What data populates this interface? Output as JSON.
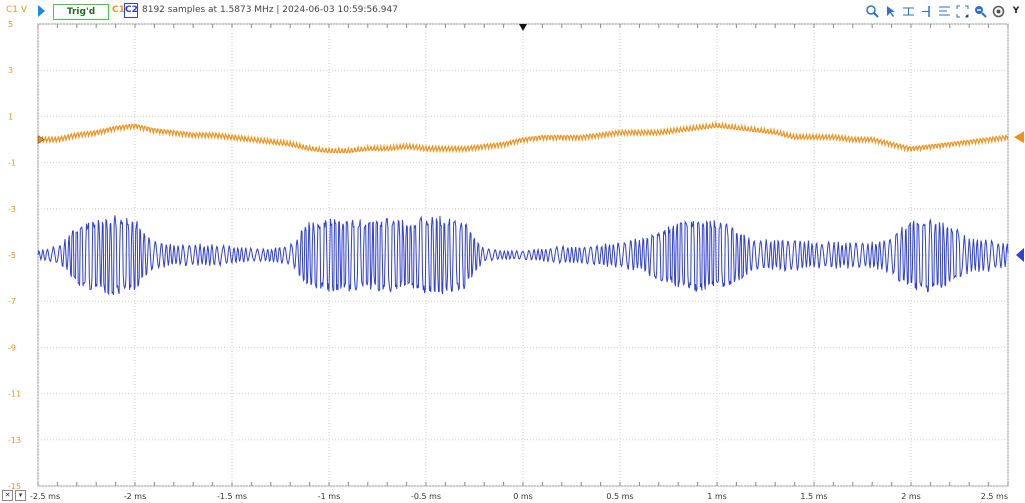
{
  "header": {
    "y_unit": "C1 V",
    "status": "Trig'd",
    "ch1_label": "C1",
    "ch2_label": "C2",
    "acq_info": "8192 samples at 1.5873 MHz  |  2024-06-03 10:59:56.947"
  },
  "toolbar": {
    "icons": [
      "zoom-icon",
      "cursor-icon",
      "hcursor-icon",
      "marker-icon",
      "align-icon",
      "zoom-fit-icon",
      "zoom-out-icon",
      "settings-icon",
      "y-axis-icon"
    ],
    "y_label": "Y"
  },
  "colors": {
    "c1": "#f0921e",
    "c2": "#2f3fd8",
    "grid": "#c8c8c8",
    "trig": "#43c843"
  },
  "chart_data": {
    "type": "line",
    "xlabel": "",
    "ylabel": "C1 V",
    "xlim": [
      -2.5,
      2.5
    ],
    "ylim": [
      -15,
      5
    ],
    "x_ticks": [
      {
        "v": -2.5,
        "label": "-2.5 ms"
      },
      {
        "v": -2.0,
        "label": "-2 ms"
      },
      {
        "v": -1.5,
        "label": "-1.5 ms"
      },
      {
        "v": -1.0,
        "label": "-1 ms"
      },
      {
        "v": -0.5,
        "label": "-0.5 ms"
      },
      {
        "v": 0,
        "label": "0 ms"
      },
      {
        "v": 0.5,
        "label": "0.5 ms"
      },
      {
        "v": 1.0,
        "label": "1 ms"
      },
      {
        "v": 1.5,
        "label": "1.5 ms"
      },
      {
        "v": 2.0,
        "label": "2 ms"
      },
      {
        "v": 2.5,
        "label": "2.5 ms"
      }
    ],
    "y_ticks": [
      5,
      3,
      1,
      -1,
      -3,
      -5,
      -7,
      -9,
      -11,
      -13,
      -15
    ],
    "grid": true,
    "series": [
      {
        "channel": "C1",
        "color": "#f0921e",
        "x": [
          -2.5,
          -2.4,
          -2.3,
          -2.2,
          -2.1,
          -2.0,
          -1.9,
          -1.8,
          -1.7,
          -1.6,
          -1.5,
          -1.4,
          -1.3,
          -1.2,
          -1.1,
          -1.0,
          -0.9,
          -0.8,
          -0.7,
          -0.6,
          -0.5,
          -0.4,
          -0.3,
          -0.2,
          -0.1,
          0.0,
          0.1,
          0.2,
          0.3,
          0.4,
          0.5,
          0.6,
          0.7,
          0.8,
          0.9,
          1.0,
          1.1,
          1.2,
          1.3,
          1.4,
          1.5,
          1.6,
          1.7,
          1.8,
          1.9,
          2.0,
          2.1,
          2.2,
          2.3,
          2.4,
          2.5
        ],
        "y": [
          0.0,
          0.0,
          0.2,
          0.3,
          0.5,
          0.6,
          0.4,
          0.3,
          0.2,
          0.2,
          0.1,
          0.0,
          -0.1,
          -0.2,
          -0.4,
          -0.5,
          -0.5,
          -0.4,
          -0.4,
          -0.3,
          -0.4,
          -0.4,
          -0.4,
          -0.3,
          -0.2,
          0.0,
          0.1,
          0.1,
          0.1,
          0.2,
          0.3,
          0.3,
          0.3,
          0.4,
          0.5,
          0.6,
          0.5,
          0.4,
          0.3,
          0.1,
          0.1,
          0.1,
          0.0,
          0.0,
          -0.2,
          -0.4,
          -0.3,
          -0.2,
          -0.1,
          0.0,
          0.1
        ],
        "ripple": 0.12
      },
      {
        "channel": "C2",
        "color": "#2f3fd8",
        "x": [
          -2.5,
          -2.4,
          -2.3,
          -2.2,
          -2.1,
          -2.0,
          -1.9,
          -1.8,
          -1.7,
          -1.6,
          -1.5,
          -1.4,
          -1.3,
          -1.2,
          -1.1,
          -1.0,
          -0.9,
          -0.8,
          -0.7,
          -0.6,
          -0.5,
          -0.4,
          -0.3,
          -0.2,
          -0.1,
          0.0,
          0.1,
          0.2,
          0.3,
          0.4,
          0.5,
          0.6,
          0.7,
          0.8,
          0.9,
          1.0,
          1.1,
          1.2,
          1.3,
          1.4,
          1.5,
          1.6,
          1.7,
          1.8,
          1.9,
          2.0,
          2.1,
          2.2,
          2.3,
          2.4,
          2.5
        ],
        "y": [
          -5,
          -5,
          -5,
          -5,
          -5,
          -5,
          -5,
          -5,
          -5,
          -5,
          -5,
          -5,
          -5,
          -5,
          -5,
          -5,
          -5,
          -5,
          -5,
          -5,
          -5,
          -5,
          -5,
          -5,
          -5,
          -5,
          -5,
          -5,
          -5,
          -5,
          -5,
          -5,
          -5,
          -5,
          -5,
          -5,
          -5,
          -5,
          -5,
          -5,
          -5,
          -5,
          -5,
          -5,
          -5,
          -5,
          -5,
          -5,
          -5,
          -5,
          -5
        ],
        "envelope": [
          0.2,
          0.4,
          1.3,
          1.6,
          1.8,
          1.6,
          0.6,
          0.5,
          0.5,
          0.5,
          0.4,
          0.3,
          0.3,
          0.5,
          1.5,
          1.6,
          1.6,
          1.5,
          1.6,
          1.5,
          1.7,
          1.7,
          1.5,
          0.3,
          0.2,
          0.2,
          0.3,
          0.4,
          0.4,
          0.5,
          0.6,
          0.8,
          1.1,
          1.4,
          1.6,
          1.5,
          1.2,
          0.7,
          0.7,
          0.8,
          0.6,
          0.6,
          0.6,
          0.6,
          0.9,
          1.5,
          1.6,
          1.3,
          0.8,
          0.8,
          0.5
        ]
      }
    ]
  }
}
